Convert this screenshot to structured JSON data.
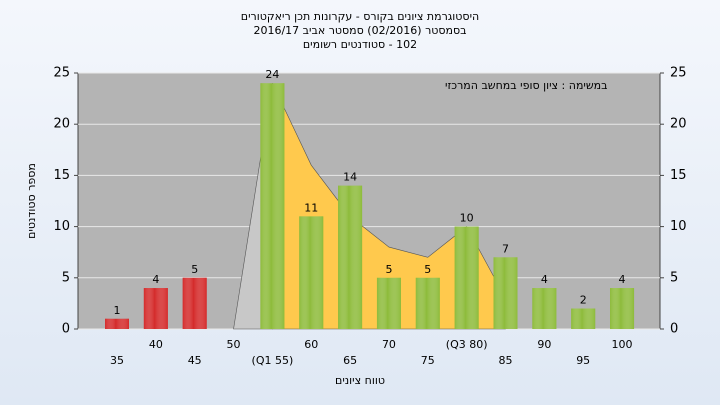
{
  "chart_data": {
    "type": "bar",
    "title": "היסטוגרמת ציונים בקורס - עקרונות תכן ריאקטורים",
    "subtitle_lines": [
      "בסמסטר  (02/2016)  סמסטר אביב 2016/17",
      "102 - סטודנטים רשומים"
    ],
    "annotation": "במשימה : ציון סופי במחשב המרכזי",
    "x_label": "טווח ציונים",
    "y_label": "מספר סטודנטים",
    "categories": [
      "35",
      "40",
      "45",
      "50",
      "(Q1 55)",
      "60",
      "65",
      "70",
      "75",
      "(Q3 80)",
      "85",
      "90",
      "95",
      "100"
    ],
    "values": [
      1,
      4,
      5,
      0,
      24,
      11,
      14,
      5,
      5,
      10,
      7,
      4,
      2,
      4
    ],
    "colors": [
      "#d42a2a",
      "#d42a2a",
      "#d42a2a",
      "#8dbb3a",
      "#8dbb3a",
      "#8dbb3a",
      "#8dbb3a",
      "#8dbb3a",
      "#8dbb3a",
      "#8dbb3a",
      "#8dbb3a",
      "#8dbb3a",
      "#8dbb3a",
      "#8dbb3a"
    ],
    "area": {
      "values": [
        null,
        null,
        null,
        null,
        24,
        16,
        11,
        8,
        7,
        10,
        3,
        null,
        null,
        null
      ],
      "color": "#ffc94d"
    },
    "shade": {
      "values": [
        null,
        null,
        null,
        0,
        24,
        null,
        null,
        null,
        null,
        null,
        null,
        null,
        null,
        null
      ],
      "color": "#c8c8c8"
    },
    "ylim": [
      0,
      25
    ],
    "yticks": [
      0,
      5,
      10,
      15,
      20,
      25
    ],
    "grid": true
  }
}
